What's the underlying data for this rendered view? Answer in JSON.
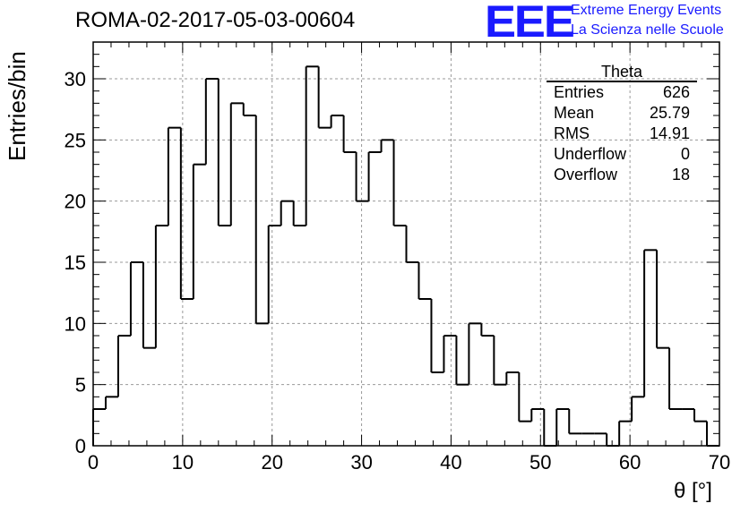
{
  "header": {
    "title": "ROMA-02-2017-05-03-00604",
    "logo_text": "EEE",
    "logo_line1": "Extreme Energy Events",
    "logo_line2": "La Scienza nelle Scuole",
    "logo_color": "#1a1aff"
  },
  "stats_box": {
    "title": "Theta",
    "rows": [
      {
        "label": "Entries",
        "value": "626"
      },
      {
        "label": "Mean",
        "value": "25.79"
      },
      {
        "label": "RMS",
        "value": "14.91"
      },
      {
        "label": "Underflow",
        "value": "0"
      },
      {
        "label": "Overflow",
        "value": "18"
      }
    ]
  },
  "chart_data": {
    "type": "bar",
    "style": "step-histogram",
    "xlabel": "θ [°]",
    "ylabel": "Entries/bin",
    "xlim": [
      0,
      70
    ],
    "ylim": [
      0,
      33
    ],
    "bin_width": 1.4,
    "values": [
      3,
      4,
      9,
      15,
      8,
      18,
      26,
      12,
      23,
      30,
      18,
      28,
      27,
      10,
      18,
      20,
      18,
      31,
      26,
      27,
      24,
      20,
      24,
      25,
      18,
      15,
      12,
      6,
      9,
      5,
      10,
      9,
      5,
      6,
      2,
      3,
      0,
      3,
      1,
      1,
      1,
      0,
      2,
      4,
      16,
      8,
      3,
      3,
      2,
      0
    ],
    "x_ticks": [
      0,
      10,
      20,
      30,
      40,
      50,
      60,
      70
    ],
    "y_ticks": [
      0,
      5,
      10,
      15,
      20,
      25,
      30
    ],
    "grid": true,
    "line_color": "#000000",
    "grid_color": "#999999"
  }
}
